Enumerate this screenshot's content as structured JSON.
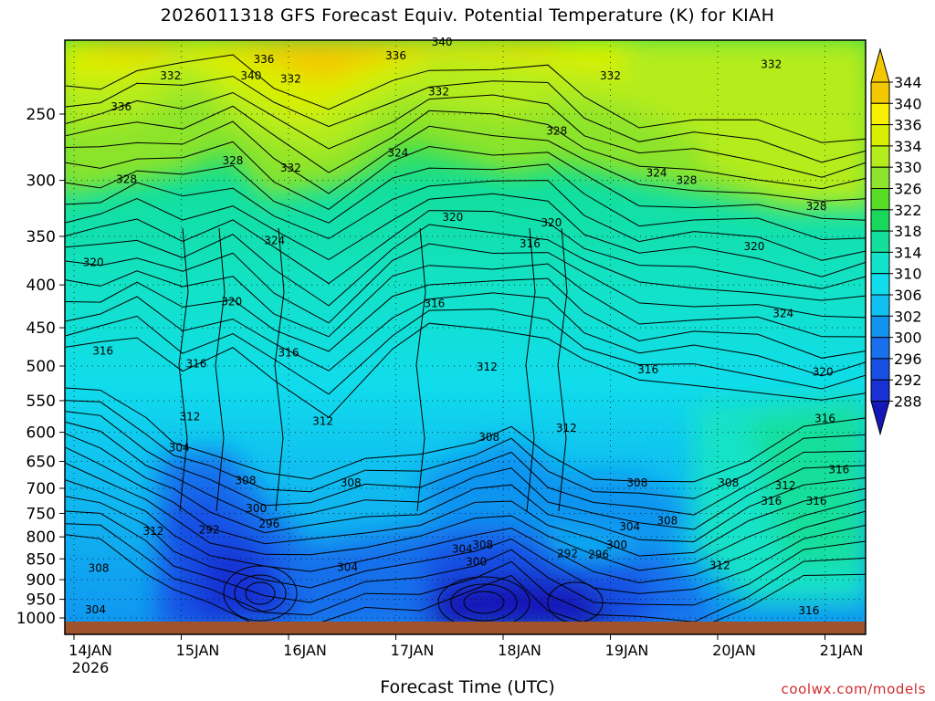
{
  "chart_data": {
    "type": "heatmap",
    "title": "2026011318 GFS Forecast Equiv. Potential Temperature (K) for KIAH",
    "xlabel": "Forecast Time (UTC)",
    "ylabel": "",
    "credit": "coolwx.com/models",
    "x_ticks": [
      "14JAN",
      "15JAN",
      "16JAN",
      "17JAN",
      "18JAN",
      "19JAN",
      "20JAN",
      "21JAN"
    ],
    "x_year": "2026",
    "y_ticks": [
      250,
      300,
      350,
      400,
      450,
      500,
      550,
      600,
      650,
      700,
      750,
      800,
      850,
      900,
      950,
      1000
    ],
    "ylim": [
      1025,
      200
    ],
    "y_scale": "log",
    "colorbar": {
      "levels": [
        344,
        340,
        336,
        334,
        330,
        326,
        322,
        318,
        314,
        310,
        306,
        302,
        300,
        296,
        292,
        288
      ],
      "colors": [
        "#f4c800",
        "#f8f000",
        "#d8f000",
        "#b4ec1c",
        "#8ce42c",
        "#56dc24",
        "#18d85c",
        "#12df9c",
        "#12e2c8",
        "#10dcec",
        "#10c0f0",
        "#1094f0",
        "#1870ec",
        "#1850e4",
        "#1830d4",
        "#1418b8"
      ]
    },
    "contour_labels": [
      {
        "t": 0.44,
        "p": 245,
        "v": "336"
      },
      {
        "t": 0.9,
        "p": 225,
        "v": "332"
      },
      {
        "t": 1.65,
        "p": 225,
        "v": "340"
      },
      {
        "t": 1.77,
        "p": 215,
        "v": "336"
      },
      {
        "t": 2.02,
        "p": 227,
        "v": "332"
      },
      {
        "t": 3.0,
        "p": 213,
        "v": "336"
      },
      {
        "t": 3.43,
        "p": 205,
        "v": "340"
      },
      {
        "t": 3.4,
        "p": 235,
        "v": "332"
      },
      {
        "t": 5.0,
        "p": 225,
        "v": "332"
      },
      {
        "t": 6.5,
        "p": 218,
        "v": "332"
      },
      {
        "t": 0.49,
        "p": 299,
        "v": "328"
      },
      {
        "t": 1.48,
        "p": 284,
        "v": "328"
      },
      {
        "t": 2.02,
        "p": 290,
        "v": "332"
      },
      {
        "t": 4.5,
        "p": 262,
        "v": "328"
      },
      {
        "t": 3.02,
        "p": 278,
        "v": "324"
      },
      {
        "t": 5.43,
        "p": 294,
        "v": "324"
      },
      {
        "t": 5.71,
        "p": 300,
        "v": "328"
      },
      {
        "t": 6.92,
        "p": 322,
        "v": "328"
      },
      {
        "t": 1.87,
        "p": 354,
        "v": "324"
      },
      {
        "t": 3.53,
        "p": 332,
        "v": "320"
      },
      {
        "t": 4.45,
        "p": 337,
        "v": "320"
      },
      {
        "t": 4.25,
        "p": 357,
        "v": "316"
      },
      {
        "t": 6.34,
        "p": 360,
        "v": "320"
      },
      {
        "t": 0.18,
        "p": 376,
        "v": "320"
      },
      {
        "t": 1.47,
        "p": 419,
        "v": "320"
      },
      {
        "t": 3.36,
        "p": 421,
        "v": "316"
      },
      {
        "t": 6.61,
        "p": 433,
        "v": "324"
      },
      {
        "t": 0.27,
        "p": 480,
        "v": "316"
      },
      {
        "t": 1.14,
        "p": 497,
        "v": "316"
      },
      {
        "t": 2.0,
        "p": 482,
        "v": "316"
      },
      {
        "t": 5.35,
        "p": 505,
        "v": "316"
      },
      {
        "t": 3.85,
        "p": 501,
        "v": "312"
      },
      {
        "t": 6.98,
        "p": 508,
        "v": "320"
      },
      {
        "t": 1.08,
        "p": 575,
        "v": "312"
      },
      {
        "t": 2.32,
        "p": 582,
        "v": "312"
      },
      {
        "t": 4.59,
        "p": 593,
        "v": "312"
      },
      {
        "t": 7.0,
        "p": 578,
        "v": "316"
      },
      {
        "t": 0.98,
        "p": 626,
        "v": "304"
      },
      {
        "t": 1.6,
        "p": 685,
        "v": "308"
      },
      {
        "t": 3.87,
        "p": 608,
        "v": "308"
      },
      {
        "t": 6.1,
        "p": 690,
        "v": "308"
      },
      {
        "t": 5.25,
        "p": 690,
        "v": "308"
      },
      {
        "t": 7.13,
        "p": 665,
        "v": "316"
      },
      {
        "t": 2.58,
        "p": 690,
        "v": "308"
      },
      {
        "t": 1.7,
        "p": 740,
        "v": "300"
      },
      {
        "t": 1.26,
        "p": 785,
        "v": "292"
      },
      {
        "t": 1.82,
        "p": 772,
        "v": "296"
      },
      {
        "t": 6.63,
        "p": 695,
        "v": "312"
      },
      {
        "t": 6.5,
        "p": 725,
        "v": "316"
      },
      {
        "t": 6.92,
        "p": 725,
        "v": "316"
      },
      {
        "t": 5.18,
        "p": 778,
        "v": "304"
      },
      {
        "t": 5.53,
        "p": 765,
        "v": "308"
      },
      {
        "t": 5.06,
        "p": 818,
        "v": "300"
      },
      {
        "t": 4.89,
        "p": 840,
        "v": "296"
      },
      {
        "t": 4.6,
        "p": 838,
        "v": "292"
      },
      {
        "t": 3.81,
        "p": 818,
        "v": "308"
      },
      {
        "t": 3.62,
        "p": 827,
        "v": "304"
      },
      {
        "t": 3.75,
        "p": 857,
        "v": "300"
      },
      {
        "t": 0.74,
        "p": 788,
        "v": "312"
      },
      {
        "t": 0.23,
        "p": 872,
        "v": "308"
      },
      {
        "t": 2.55,
        "p": 870,
        "v": "304"
      },
      {
        "t": 6.02,
        "p": 865,
        "v": "312"
      },
      {
        "t": 0.2,
        "p": 978,
        "v": "304"
      },
      {
        "t": 6.85,
        "p": 980,
        "v": "316"
      }
    ]
  }
}
